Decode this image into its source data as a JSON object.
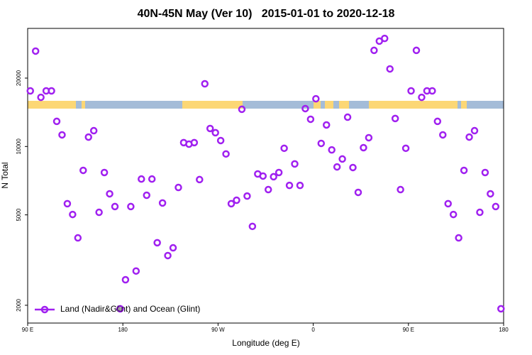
{
  "chart_data": {
    "type": "scatter",
    "title": "40N-45N May (Ver 10)   2015-01-01 to 2020-12-18",
    "x_label": "Longitude (deg E)",
    "y_label": "N Total",
    "log_y": true,
    "legend": "bottom-left",
    "xlim": [
      90,
      540
    ],
    "xticks": [
      {
        "value": 90,
        "label": "90 E"
      },
      180,
      {
        "value": 270,
        "label": "90 W"
      },
      {
        "value": 360,
        "label": "0"
      },
      {
        "value": 450,
        "label": "90 E"
      },
      {
        "value": 540,
        "label": "180"
      }
    ],
    "ylim": [
      1670,
      33100
    ],
    "yticks": [
      2000,
      5000,
      10000,
      20000
    ],
    "series": [
      {
        "name": "Land (Nadir&Glint) and Ocean (Glint)",
        "color": "#a020f0",
        "x": [
          92.5,
          97.5,
          102.5,
          107.5,
          112.5,
          117.5,
          122.5,
          127.5,
          132.5,
          137.5,
          142.5,
          147.5,
          152.5,
          157.5,
          162.5,
          167.5,
          172.5,
          177.5,
          182.5,
          187.5,
          192.5,
          197.5,
          202.5,
          207.5,
          212.5,
          217.5,
          222.5,
          227.5,
          232.5,
          237.5,
          242.5,
          247.5,
          252.5,
          257.5,
          262.5,
          267.5,
          272.5,
          277.5,
          282.5,
          287.5,
          292.5,
          297.5,
          302.5,
          307.5,
          312.5,
          317.5,
          322.5,
          327.5,
          332.5,
          337.5,
          342.5,
          347.5,
          352.5,
          357.5,
          362.5,
          367.5,
          372.5,
          377.5,
          382.5,
          387.5,
          392.5,
          397.5,
          402.5,
          407.5,
          412.5,
          417.5,
          422.5,
          427.5,
          432.5,
          437.5,
          442.5,
          447.5,
          452.5,
          457.5,
          462.5,
          467.5,
          472.5,
          477.5,
          482.5,
          487.5,
          492.5,
          497.5,
          502.5,
          507.5,
          512.5,
          517.5,
          522.5,
          527.5,
          532.5,
          537.5
        ],
        "values": [
          17570,
          26300,
          16460,
          17570,
          17570,
          12900,
          11250,
          5600,
          5020,
          3960,
          7850,
          11000,
          11740,
          5130,
          7680,
          6190,
          5440,
          1930,
          2590,
          5440,
          2830,
          7190,
          6100,
          7190,
          3770,
          5640,
          3310,
          3580,
          6600,
          10400,
          10240,
          10400,
          7150,
          18880,
          12000,
          11500,
          10620,
          9270,
          5600,
          5800,
          14580,
          6050,
          4450,
          7570,
          7410,
          6460,
          7360,
          7680,
          9820,
          6740,
          8380,
          6740,
          14680,
          13180,
          16220,
          10320,
          12440,
          9660,
          8130,
          8810,
          13460,
          8080,
          6280,
          9880,
          10930,
          26500,
          29100,
          29900,
          21950,
          13280,
          6460,
          9820,
          17570,
          26500,
          16460,
          17570,
          17570,
          12900,
          11250,
          5600,
          5020,
          3960,
          7850,
          11000,
          11740,
          5130,
          7680,
          6190,
          5440,
          1930
        ]
      }
    ]
  }
}
